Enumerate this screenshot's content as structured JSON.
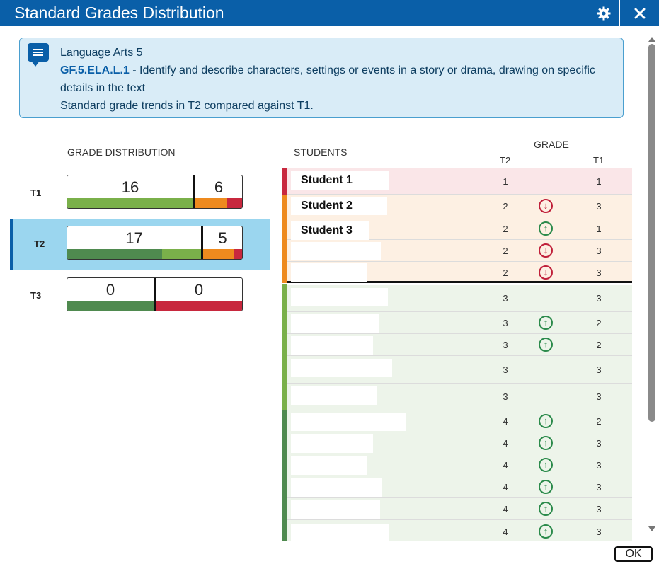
{
  "window": {
    "title": "Standard Grades Distribution",
    "settings_icon": "gear-icon",
    "close_icon": "close-icon"
  },
  "info": {
    "course": "Language Arts 5",
    "standard_code": "GF.5.ELA.L.1",
    "standard_desc": " - Identify and describe characters, settings or events in a story or drama, drawing on specific details in the text",
    "trend_note": "Standard grade trends in T2 compared against T1."
  },
  "distribution": {
    "header": "GRADE DISTRIBUTION",
    "terms": [
      {
        "label": "T1",
        "left_count": "16",
        "right_count": "6",
        "selected": false
      },
      {
        "label": "T2",
        "left_count": "17",
        "right_count": "5",
        "selected": true
      },
      {
        "label": "T3",
        "left_count": "0",
        "right_count": "0",
        "selected": false
      }
    ]
  },
  "students": {
    "header": "STUDENTS",
    "grade_header": "GRADE",
    "col_t2": "T2",
    "col_t1": "T1",
    "rows": [
      {
        "name": "Student 1",
        "t2": "1",
        "t1": "1",
        "trend": ""
      },
      {
        "name": "Student 2",
        "t2": "2",
        "t1": "3",
        "trend": "down"
      },
      {
        "name": "Student 3",
        "t2": "2",
        "t1": "1",
        "trend": "up"
      },
      {
        "name": "",
        "t2": "2",
        "t1": "3",
        "trend": "down"
      },
      {
        "name": "",
        "t2": "2",
        "t1": "3",
        "trend": "down"
      },
      {
        "name": "",
        "t2": "3",
        "t1": "3",
        "trend": ""
      },
      {
        "name": "",
        "t2": "3",
        "t1": "2",
        "trend": "up"
      },
      {
        "name": "",
        "t2": "3",
        "t1": "2",
        "trend": "up"
      },
      {
        "name": "",
        "t2": "3",
        "t1": "3",
        "trend": ""
      },
      {
        "name": "",
        "t2": "3",
        "t1": "3",
        "trend": ""
      },
      {
        "name": "",
        "t2": "4",
        "t1": "2",
        "trend": "up"
      },
      {
        "name": "",
        "t2": "4",
        "t1": "3",
        "trend": "up"
      },
      {
        "name": "",
        "t2": "4",
        "t1": "3",
        "trend": "up"
      },
      {
        "name": "",
        "t2": "4",
        "t1": "3",
        "trend": "up"
      },
      {
        "name": "",
        "t2": "4",
        "t1": "3",
        "trend": "up"
      },
      {
        "name": "",
        "t2": "4",
        "t1": "3",
        "trend": "up"
      }
    ]
  },
  "footer": {
    "ok_label": "OK"
  },
  "colors": {
    "brand": "#0a5fa8",
    "grade1": "#c8283e",
    "grade2": "#ee8a1e",
    "grade3": "#7ab04a",
    "grade4": "#4f8a4f"
  }
}
